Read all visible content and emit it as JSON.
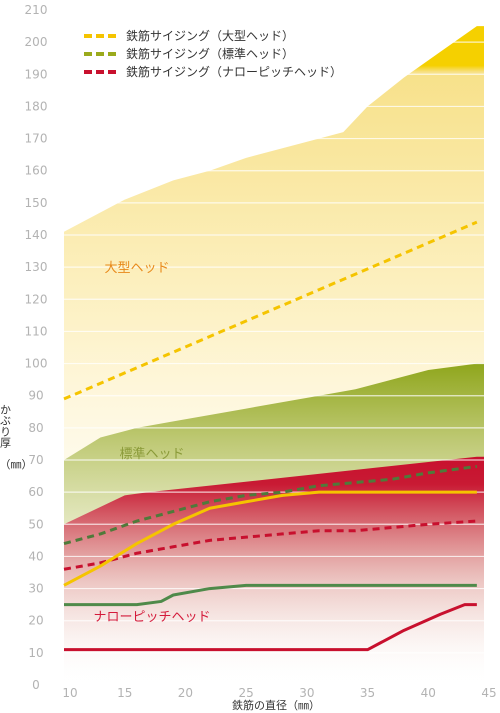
{
  "chart_data": {
    "type": "area",
    "xlabel": "鉄筋の直径（㎜）",
    "ylabel_lines": [
      "かぶり厚",
      "（㎜）"
    ],
    "xlim": [
      10,
      45
    ],
    "ylim": [
      0,
      210
    ],
    "x_ticks": [
      10,
      15,
      20,
      25,
      30,
      35,
      40,
      45
    ],
    "y_ticks": [
      0,
      10,
      20,
      30,
      40,
      50,
      60,
      70,
      80,
      90,
      100,
      110,
      120,
      130,
      140,
      150,
      160,
      170,
      180,
      190,
      200,
      210
    ],
    "grid": "horizontal",
    "legend_position": "top",
    "legend": [
      {
        "label": "鉄筋サイジング（大型ヘッド）",
        "color": "#f5c400"
      },
      {
        "label": "鉄筋サイジング（標準ヘッド）",
        "color": "#9aaa1c"
      },
      {
        "label": "鉄筋サイジング（ナローピッチヘッド）",
        "color": "#c8102e"
      }
    ],
    "regions": [
      {
        "label": "大型ヘッド",
        "label_color": "#e8891a",
        "color": "#f5d000",
        "x": [
          10,
          12,
          15,
          19,
          22,
          25,
          29,
          32,
          33,
          35,
          38,
          41,
          44
        ],
        "y": [
          141,
          145,
          151,
          157,
          160,
          164,
          168,
          171,
          172,
          180,
          189,
          197,
          205
        ]
      },
      {
        "label": "標準ヘッド",
        "label_color": "#8a9a38",
        "color": "#8fa61c",
        "x": [
          10,
          13,
          16,
          19,
          22,
          25,
          28,
          31,
          34,
          37,
          40,
          44
        ],
        "y": [
          70,
          77,
          80,
          82,
          84,
          86,
          88,
          90,
          92,
          95,
          98,
          100
        ]
      },
      {
        "label": "ナローピッチヘッド",
        "label_color": "#d41a3a",
        "color": "#c8102e",
        "x": [
          10,
          15,
          17,
          44
        ],
        "y": [
          50,
          59,
          60,
          71
        ]
      }
    ],
    "series": [
      {
        "name": "鉄筋サイジング（大型ヘッド）",
        "style": "dashed",
        "color": "#f5c400",
        "x": [
          10,
          44
        ],
        "y": [
          89,
          144
        ]
      },
      {
        "name": "鉄筋サイジング（標準ヘッド）",
        "style": "dashed",
        "color": "#4f7a3a",
        "x": [
          10,
          13,
          16,
          19,
          22,
          25,
          28,
          31,
          34,
          37,
          40,
          44
        ],
        "y": [
          44,
          47,
          51,
          54,
          57,
          59,
          60,
          62,
          63,
          64,
          66,
          68
        ]
      },
      {
        "name": "鉄筋サイジング（ナローピッチヘッド）",
        "style": "dashed",
        "color": "#c8102e",
        "x": [
          10,
          13,
          16,
          19,
          22,
          25,
          28,
          31,
          34,
          37,
          40,
          44
        ],
        "y": [
          36,
          38,
          41,
          43,
          45,
          46,
          47,
          48,
          48,
          49,
          50,
          51
        ]
      },
      {
        "name": "",
        "style": "solid",
        "color": "#f5c400",
        "x": [
          10,
          13,
          16,
          19,
          22,
          25,
          28,
          31,
          35,
          40,
          44
        ],
        "y": [
          31,
          37,
          44,
          50,
          55,
          57,
          59,
          60,
          60,
          60,
          60
        ]
      },
      {
        "name": "",
        "style": "solid",
        "color": "#4f8a4a",
        "x": [
          10,
          16,
          18,
          19,
          22,
          25,
          30,
          35,
          40,
          44
        ],
        "y": [
          25,
          25,
          26,
          28,
          30,
          31,
          31,
          31,
          31,
          31
        ]
      },
      {
        "name": "",
        "style": "solid",
        "color": "#c8102e",
        "x": [
          10,
          35,
          38,
          41,
          43,
          44
        ],
        "y": [
          11,
          11,
          17,
          22,
          25,
          25
        ]
      }
    ]
  }
}
